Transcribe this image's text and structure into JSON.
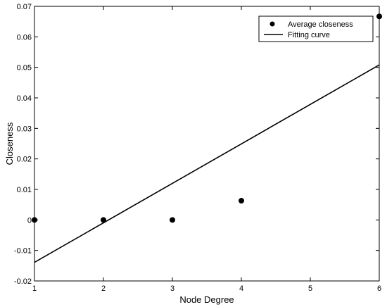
{
  "chart_data": {
    "type": "scatter",
    "title": "",
    "xlabel": "Node Degree",
    "ylabel": "Closeness",
    "xlim": [
      1,
      6
    ],
    "ylim": [
      -0.02,
      0.07
    ],
    "x_ticks": [
      1,
      2,
      3,
      4,
      5,
      6
    ],
    "x_tick_labels": [
      "1",
      "2",
      "3",
      "4",
      "5",
      "6"
    ],
    "y_ticks": [
      -0.02,
      -0.01,
      0,
      0.01,
      0.02,
      0.03,
      0.04,
      0.05,
      0.06,
      0.07
    ],
    "y_tick_labels": [
      "-0.02",
      "-0.01",
      "0",
      "0.01",
      "0.02",
      "0.03",
      "0.04",
      "0.05",
      "0.06",
      "0.07"
    ],
    "grid": false,
    "legend_position": "top-right",
    "series": [
      {
        "name": "Average closeness",
        "kind": "scatter",
        "color": "#000000",
        "points": [
          {
            "x": 1,
            "y": 0
          },
          {
            "x": 2,
            "y": 0
          },
          {
            "x": 3,
            "y": 0
          },
          {
            "x": 4,
            "y": 0.0063
          },
          {
            "x": 6,
            "y": 0.0667
          }
        ]
      },
      {
        "name": "Fitting curve",
        "kind": "line",
        "color": "#000000",
        "points": [
          {
            "x": 1,
            "y": -0.0139
          },
          {
            "x": 6,
            "y": 0.0508
          }
        ]
      }
    ]
  }
}
